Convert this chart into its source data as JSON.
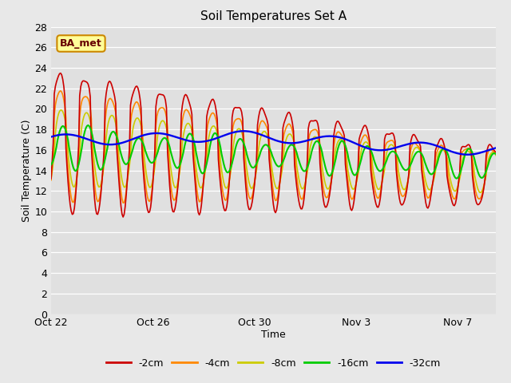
{
  "title": "Soil Temperatures Set A",
  "xlabel": "Time",
  "ylabel": "Soil Temperature (C)",
  "ylim": [
    0,
    28
  ],
  "yticks": [
    0,
    2,
    4,
    6,
    8,
    10,
    12,
    14,
    16,
    18,
    20,
    22,
    24,
    26,
    28
  ],
  "xlim": [
    0,
    17.5
  ],
  "xtick_positions": [
    0,
    4,
    8,
    12,
    16
  ],
  "xtick_labels": [
    "Oct 22",
    "Oct 26",
    "Oct 30",
    "Nov 3",
    "Nov 7"
  ],
  "colors": {
    "-2cm": "#cc0000",
    "-4cm": "#ff8800",
    "-8cm": "#cccc00",
    "-16cm": "#00cc00",
    "-32cm": "#0000ee"
  },
  "annotation_text": "BA_met",
  "annotation_bg": "#ffff99",
  "annotation_border": "#cc8800",
  "fig_bg_color": "#e8e8e8",
  "plot_bg_color": "#e0e0e0",
  "linewidth": 1.2,
  "title_fontsize": 11,
  "axis_fontsize": 9,
  "tick_fontsize": 9
}
